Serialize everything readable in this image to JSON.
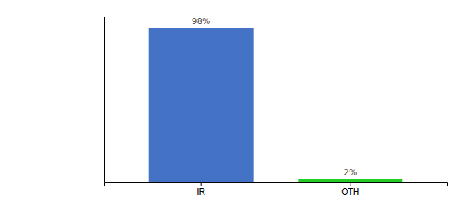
{
  "chart_data": {
    "type": "bar",
    "categories": [
      "IR",
      "OTH"
    ],
    "values": [
      98,
      2
    ],
    "value_labels": [
      "98%",
      "2%"
    ],
    "colors": [
      "#4472c4",
      "#22cc22"
    ],
    "ylim": [
      0,
      105
    ],
    "grid": false,
    "tick_labels": "x"
  }
}
